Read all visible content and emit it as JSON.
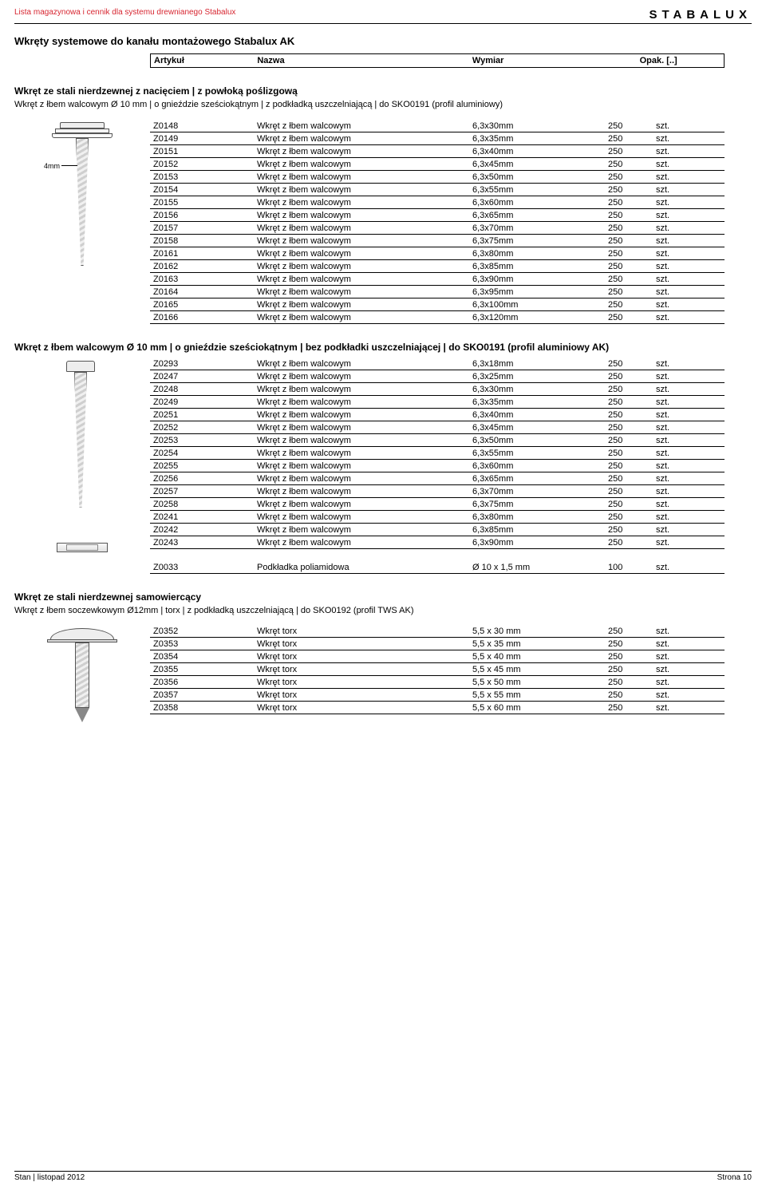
{
  "doc_title": "Lista magazynowa i cennik dla systemu drewnianego Stabalux",
  "brand": "STABALUX",
  "page_title": "Wkręty systemowe do kanału montażowego Stabalux AK",
  "header": {
    "c1": "Artykuł",
    "c2": "Nazwa",
    "c3": "Wymiar",
    "c4": "Opak. [..]"
  },
  "section1": {
    "title": "Wkręt ze stali nierdzewnej z nacięciem | z powłoką poślizgową",
    "subtitle": "Wkręt z łbem walcowym Ø  10 mm | o gnieździe sześciokątnym | z podkładką uszczelniającą | do SKO0191 (profil aluminiowy)",
    "dim_label": "4mm",
    "rows": [
      {
        "a": "Z0148",
        "n": "Wkręt z łbem walcowym",
        "w": "6,3x30mm",
        "q": "250",
        "u": "szt."
      },
      {
        "a": "Z0149",
        "n": "Wkręt z łbem walcowym",
        "w": "6,3x35mm",
        "q": "250",
        "u": "szt."
      },
      {
        "a": "Z0151",
        "n": "Wkręt z łbem walcowym",
        "w": "6,3x40mm",
        "q": "250",
        "u": "szt."
      },
      {
        "a": "Z0152",
        "n": "Wkręt z łbem walcowym",
        "w": "6,3x45mm",
        "q": "250",
        "u": "szt."
      },
      {
        "a": "Z0153",
        "n": "Wkręt z łbem walcowym",
        "w": "6,3x50mm",
        "q": "250",
        "u": "szt."
      },
      {
        "a": "Z0154",
        "n": "Wkręt z łbem walcowym",
        "w": "6,3x55mm",
        "q": "250",
        "u": "szt."
      },
      {
        "a": "Z0155",
        "n": "Wkręt z łbem walcowym",
        "w": "6,3x60mm",
        "q": "250",
        "u": "szt."
      },
      {
        "a": "Z0156",
        "n": "Wkręt z łbem walcowym",
        "w": "6,3x65mm",
        "q": "250",
        "u": "szt."
      },
      {
        "a": "Z0157",
        "n": "Wkręt z łbem walcowym",
        "w": "6,3x70mm",
        "q": "250",
        "u": "szt."
      },
      {
        "a": "Z0158",
        "n": "Wkręt z łbem walcowym",
        "w": "6,3x75mm",
        "q": "250",
        "u": "szt."
      },
      {
        "a": "Z0161",
        "n": "Wkręt z łbem walcowym",
        "w": "6,3x80mm",
        "q": "250",
        "u": "szt."
      },
      {
        "a": "Z0162",
        "n": "Wkręt z łbem walcowym",
        "w": "6,3x85mm",
        "q": "250",
        "u": "szt."
      },
      {
        "a": "Z0163",
        "n": "Wkręt z łbem walcowym",
        "w": "6,3x90mm",
        "q": "250",
        "u": "szt."
      },
      {
        "a": "Z0164",
        "n": "Wkręt z łbem walcowym",
        "w": "6,3x95mm",
        "q": "250",
        "u": "szt."
      },
      {
        "a": "Z0165",
        "n": "Wkręt z łbem walcowym",
        "w": "6,3x100mm",
        "q": "250",
        "u": "szt."
      },
      {
        "a": "Z0166",
        "n": "Wkręt z łbem walcowym",
        "w": "6,3x120mm",
        "q": "250",
        "u": "szt."
      }
    ]
  },
  "section2": {
    "subtitle": "Wkręt z łbem walcowym Ø  10 mm | o gnieździe sześciokątnym | bez podkładki uszczelniającej | do SKO0191 (profil aluminiowy AK)",
    "rows": [
      {
        "a": "Z0293",
        "n": "Wkręt z łbem walcowym",
        "w": "6,3x18mm",
        "q": "250",
        "u": "szt."
      },
      {
        "a": "Z0247",
        "n": "Wkręt z łbem walcowym",
        "w": "6,3x25mm",
        "q": "250",
        "u": "szt."
      },
      {
        "a": "Z0248",
        "n": "Wkręt z łbem walcowym",
        "w": "6,3x30mm",
        "q": "250",
        "u": "szt."
      },
      {
        "a": "Z0249",
        "n": "Wkręt z łbem walcowym",
        "w": "6,3x35mm",
        "q": "250",
        "u": "szt."
      },
      {
        "a": "Z0251",
        "n": "Wkręt z łbem walcowym",
        "w": "6,3x40mm",
        "q": "250",
        "u": "szt."
      },
      {
        "a": "Z0252",
        "n": "Wkręt z łbem walcowym",
        "w": "6,3x45mm",
        "q": "250",
        "u": "szt."
      },
      {
        "a": "Z0253",
        "n": "Wkręt z łbem walcowym",
        "w": "6,3x50mm",
        "q": "250",
        "u": "szt."
      },
      {
        "a": "Z0254",
        "n": "Wkręt z łbem walcowym",
        "w": "6,3x55mm",
        "q": "250",
        "u": "szt."
      },
      {
        "a": "Z0255",
        "n": "Wkręt z łbem walcowym",
        "w": "6,3x60mm",
        "q": "250",
        "u": "szt."
      },
      {
        "a": "Z0256",
        "n": "Wkręt z łbem walcowym",
        "w": "6,3x65mm",
        "q": "250",
        "u": "szt."
      },
      {
        "a": "Z0257",
        "n": "Wkręt z łbem walcowym",
        "w": "6,3x70mm",
        "q": "250",
        "u": "szt."
      },
      {
        "a": "Z0258",
        "n": "Wkręt z łbem walcowym",
        "w": "6,3x75mm",
        "q": "250",
        "u": "szt."
      },
      {
        "a": "Z0241",
        "n": "Wkręt z łbem walcowym",
        "w": "6,3x80mm",
        "q": "250",
        "u": "szt."
      },
      {
        "a": "Z0242",
        "n": "Wkręt z łbem walcowym",
        "w": "6,3x85mm",
        "q": "250",
        "u": "szt."
      },
      {
        "a": "Z0243",
        "n": "Wkręt z łbem walcowym",
        "w": "6,3x90mm",
        "q": "250",
        "u": "szt."
      }
    ],
    "extra": {
      "a": "Z0033",
      "n": "Podkładka poliamidowa",
      "w": "Ø 10 x 1,5 mm",
      "q": "100",
      "u": "szt."
    }
  },
  "section3": {
    "title": "Wkręt ze stali nierdzewnej samowiercący",
    "subtitle": "Wkręt z łbem soczewkowym Ø12mm | torx | z podkładką uszczelniającą | do SKO0192 (profil TWS AK)",
    "rows": [
      {
        "a": "Z0352",
        "n": "Wkręt torx",
        "w": "5,5 x 30 mm",
        "q": "250",
        "u": "szt."
      },
      {
        "a": "Z0353",
        "n": "Wkręt torx",
        "w": "5,5 x 35 mm",
        "q": "250",
        "u": "szt."
      },
      {
        "a": "Z0354",
        "n": "Wkręt torx",
        "w": "5,5 x 40 mm",
        "q": "250",
        "u": "szt."
      },
      {
        "a": "Z0355",
        "n": "Wkręt torx",
        "w": "5,5 x 45 mm",
        "q": "250",
        "u": "szt."
      },
      {
        "a": "Z0356",
        "n": "Wkręt torx",
        "w": "5,5 x 50 mm",
        "q": "250",
        "u": "szt."
      },
      {
        "a": "Z0357",
        "n": "Wkręt torx",
        "w": "5,5 x 55 mm",
        "q": "250",
        "u": "szt."
      },
      {
        "a": "Z0358",
        "n": "Wkręt torx",
        "w": "5,5 x 60 mm",
        "q": "250",
        "u": "szt."
      }
    ]
  },
  "footer": {
    "left": "Stan | listopad 2012",
    "right": "Strona 10"
  }
}
